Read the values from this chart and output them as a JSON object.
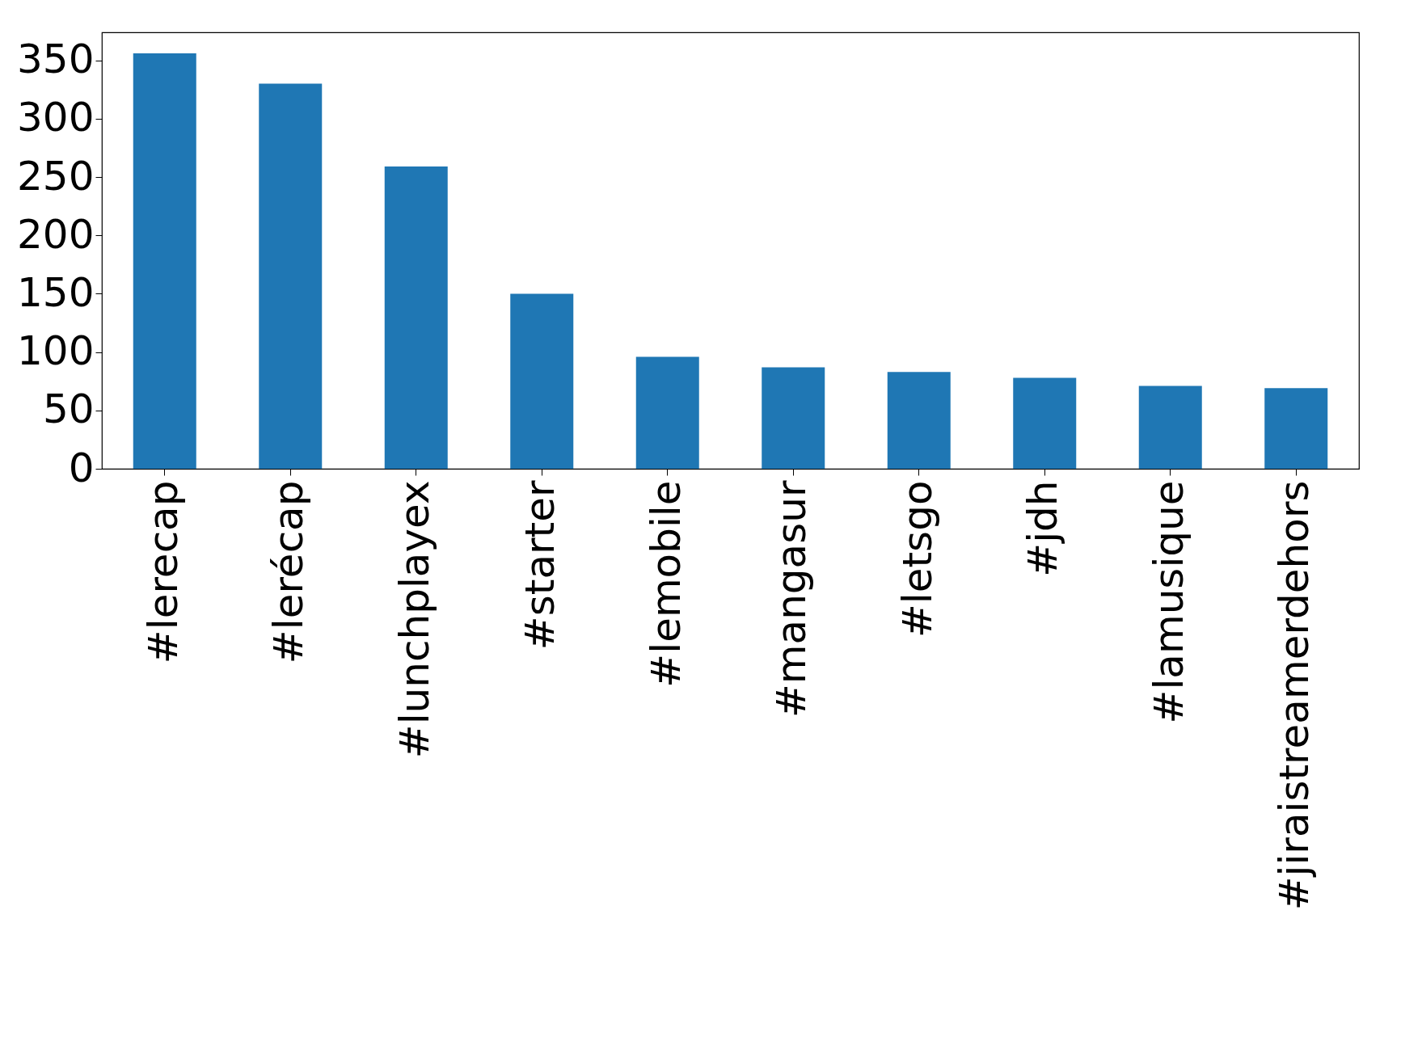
{
  "chart_data": {
    "type": "bar",
    "categories": [
      "#lerecap",
      "#lerécap",
      "#lunchplayex",
      "#starter",
      "#lemobile",
      "#mangasur",
      "#letsgo",
      "#jdh",
      "#lamusique",
      "#jiraistreamerdehors"
    ],
    "values": [
      356,
      330,
      259,
      150,
      96,
      87,
      83,
      78,
      71,
      69
    ],
    "color": "#1f77b4",
    "ylim": [
      0,
      374
    ],
    "yticks": [
      0,
      50,
      100,
      150,
      200,
      250,
      300,
      350
    ],
    "grid": false
  }
}
